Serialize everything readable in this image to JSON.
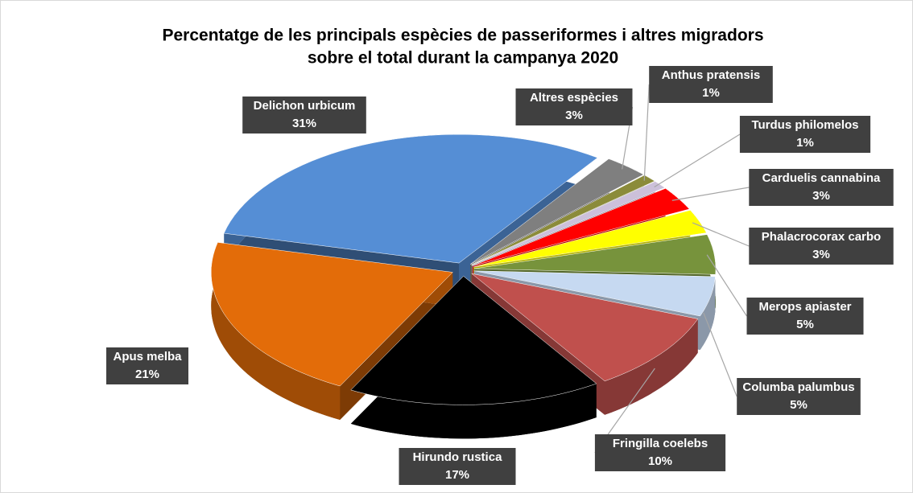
{
  "chart_data": {
    "type": "pie",
    "title": [
      "Percentatge de les principals espècies de passeriformes i altres migradors",
      "sobre el total durant la campanya 2020"
    ],
    "categories": [
      "Delichon urbicum",
      "Apus melba",
      "Hirundo rustica",
      "Fringilla coelebs",
      "Columba palumbus",
      "Merops apiaster",
      "Phalacrocorax carbo",
      "Carduelis cannabina",
      "Turdus philomelos",
      "Anthus pratensis",
      "Altres espècies"
    ],
    "values": [
      31,
      21,
      17,
      10,
      5,
      5,
      3,
      3,
      1,
      1,
      3
    ],
    "value_labels": [
      "31%",
      "21%",
      "17%",
      "10%",
      "5%",
      "5%",
      "3%",
      "3%",
      "1%",
      "1%",
      "3%"
    ],
    "colors": [
      "#558ed5",
      "#e36c09",
      "#000000",
      "#c0504d",
      "#c6d9f1",
      "#77933c",
      "#ffff00",
      "#ff0000",
      "#ccc0da",
      "#8b8b3a",
      "#7f7f7f"
    ]
  }
}
